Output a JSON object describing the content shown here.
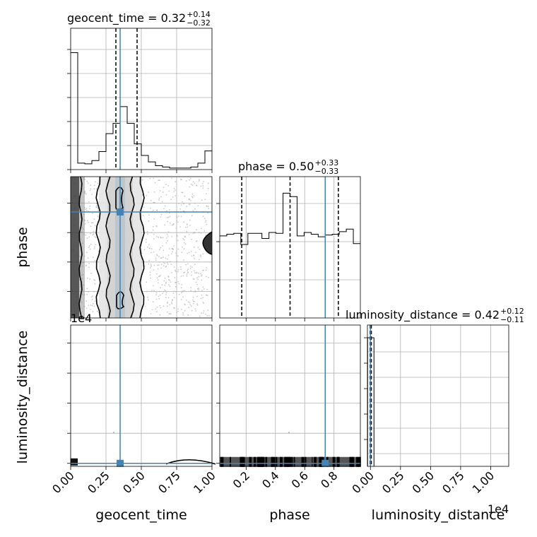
{
  "chart_data": {
    "type": "corner",
    "parameters": [
      "geocent_time",
      "phase",
      "luminosity_distance"
    ],
    "truths": {
      "geocent_time": 0.35,
      "phase": 0.74,
      "luminosity_distance": 0.0
    },
    "titles": {
      "geocent_time": {
        "name": "geocent_time",
        "median": "0.32",
        "plus": "+0.14",
        "minus": "−0.32"
      },
      "phase": {
        "name": "phase",
        "median": "0.50",
        "plus": "+0.33",
        "minus": "−0.33"
      },
      "luminosity_distance": {
        "name": "luminosity_distance",
        "median": "0.42",
        "plus": "+0.12",
        "minus": "−0.11"
      }
    },
    "axis_labels": {
      "x": [
        "geocent_time",
        "phase",
        "luminosity_distance"
      ],
      "y": [
        "phase",
        "luminosity_distance"
      ]
    },
    "offset_labels": {
      "ld_y": "1e4",
      "ld_x": "1e4"
    },
    "ticks": {
      "geocent_time": [
        "0.00",
        "0.25",
        "0.50",
        "0.75",
        "1.00"
      ],
      "phase": [
        "0.2",
        "0.4",
        "0.6",
        "0.8"
      ],
      "luminosity_distance": [
        "0.00",
        "0.25",
        "0.50",
        "0.75",
        "1.00"
      ]
    },
    "ranges": {
      "geocent_time": [
        0,
        1
      ],
      "phase": [
        0.02,
        0.98
      ],
      "luminosity_distance": [
        -0.025,
        1.15
      ]
    },
    "hist_geocent_time": {
      "bin_edges": [
        0,
        0.05,
        0.1,
        0.15,
        0.2,
        0.25,
        0.3,
        0.35,
        0.4,
        0.45,
        0.5,
        0.55,
        0.6,
        0.65,
        0.7,
        0.75,
        0.8,
        0.85,
        0.9,
        0.95,
        1.0
      ],
      "counts": [
        0.91,
        0.05,
        0.045,
        0.07,
        0.14,
        0.28,
        0.36,
        0.49,
        0.36,
        0.2,
        0.11,
        0.06,
        0.03,
        0.02,
        0.012,
        0.012,
        0.012,
        0.02,
        0.05,
        0.145
      ],
      "ymax": 1.0,
      "quantiles": [
        0.32,
        0.47
      ]
    },
    "hist_phase": {
      "bin_edges": [
        0.02,
        0.068,
        0.116,
        0.164,
        0.212,
        0.26,
        0.308,
        0.356,
        0.404,
        0.452,
        0.5,
        0.548,
        0.596,
        0.644,
        0.692,
        0.74,
        0.788,
        0.836,
        0.884,
        0.932,
        0.98
      ],
      "counts": [
        0.48,
        0.49,
        0.495,
        0.43,
        0.495,
        0.495,
        0.465,
        0.5,
        0.495,
        0.73,
        0.71,
        0.48,
        0.5,
        0.49,
        0.475,
        0.485,
        0.49,
        0.505,
        0.52,
        0.435
      ],
      "ymax": 0.78,
      "quantiles": [
        0.17,
        0.5,
        0.83
      ]
    },
    "hist_luminosity_distance": {
      "spike_at": 0.0,
      "quantiles": [
        -0.003,
        0.008
      ]
    }
  }
}
